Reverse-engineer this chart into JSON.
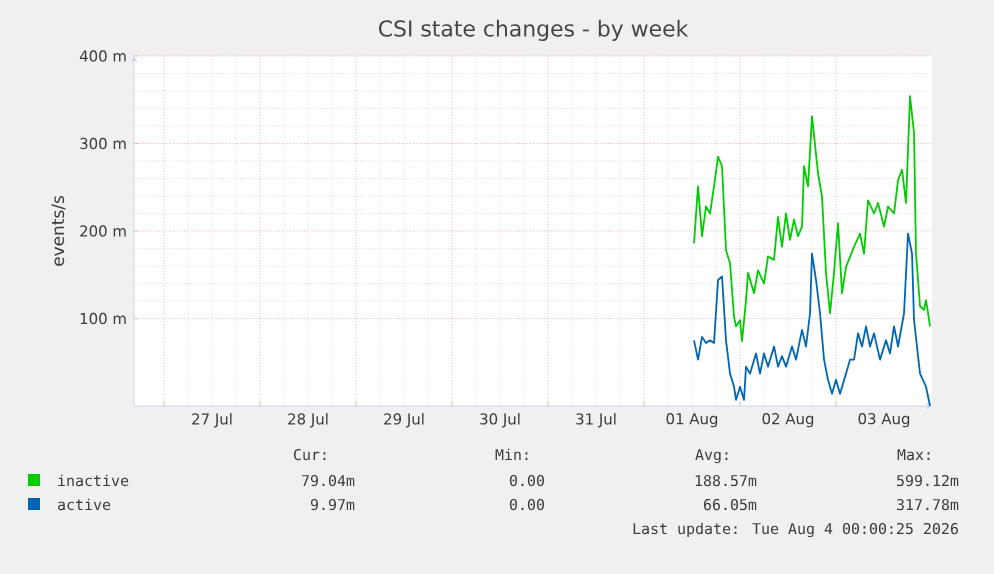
{
  "chart_data": {
    "type": "line",
    "title": "CSI state changes - by week",
    "ylabel": "events/s",
    "xlim": [
      "2026-07-26T16:30",
      "2026-08-04T00:00"
    ],
    "ylim": [
      0,
      400
    ],
    "yticks": [
      {
        "value": 100,
        "label": "100 m"
      },
      {
        "value": 200,
        "label": "200 m"
      },
      {
        "value": 300,
        "label": "300 m"
      },
      {
        "value": 400,
        "label": "400 m"
      }
    ],
    "xticks": [
      {
        "value": "2026-07-27T00:00",
        "label": null
      },
      {
        "value": "2026-07-28T00:00",
        "label": null
      },
      {
        "value": "2026-07-29T00:00",
        "label": null
      },
      {
        "value": "2026-07-30T00:00",
        "label": null
      },
      {
        "value": "2026-07-31T00:00",
        "label": null
      },
      {
        "value": "2026-08-01T00:00",
        "label": null
      },
      {
        "value": "2026-08-02T00:00",
        "label": null
      },
      {
        "value": "2026-08-03T00:00",
        "label": null
      },
      {
        "value": "2026-07-27T12:00",
        "label": "27 Jul"
      },
      {
        "value": "2026-07-28T12:00",
        "label": "28 Jul"
      },
      {
        "value": "2026-07-29T12:00",
        "label": "29 Jul"
      },
      {
        "value": "2026-07-30T12:00",
        "label": "30 Jul"
      },
      {
        "value": "2026-07-31T12:00",
        "label": "31 Jul"
      },
      {
        "value": "2026-08-01T12:00",
        "label": "01 Aug"
      },
      {
        "value": "2026-08-02T12:00",
        "label": "02 Aug"
      },
      {
        "value": "2026-08-03T12:00",
        "label": "03 Aug"
      }
    ],
    "grid": true,
    "legend": "bottom",
    "series": [
      {
        "name": "inactive",
        "color": "#00cc00",
        "x": [
          "2026-08-01T12:30",
          "2026-08-01T13:30",
          "2026-08-01T14:30",
          "2026-08-01T15:30",
          "2026-08-01T16:30",
          "2026-08-01T17:30",
          "2026-08-01T18:30",
          "2026-08-01T19:30",
          "2026-08-01T20:30",
          "2026-08-01T21:30",
          "2026-08-01T22:30",
          "2026-08-01T23:00",
          "2026-08-02T00:00",
          "2026-08-02T00:30",
          "2026-08-02T01:30",
          "2026-08-02T02:00",
          "2026-08-02T03:30",
          "2026-08-02T04:30",
          "2026-08-02T06:00",
          "2026-08-02T07:00",
          "2026-08-02T08:30",
          "2026-08-02T09:30",
          "2026-08-02T10:30",
          "2026-08-02T11:30",
          "2026-08-02T12:30",
          "2026-08-02T13:30",
          "2026-08-02T14:30",
          "2026-08-02T15:30",
          "2026-08-02T16:00",
          "2026-08-02T17:00",
          "2026-08-02T18:00",
          "2026-08-02T19:30",
          "2026-08-02T20:30",
          "2026-08-02T21:30",
          "2026-08-02T22:30",
          "2026-08-02T23:30",
          "2026-08-03T00:30",
          "2026-08-03T01:30",
          "2026-08-03T02:30",
          "2026-08-03T04:30",
          "2026-08-03T06:00",
          "2026-08-03T07:00",
          "2026-08-03T08:00",
          "2026-08-03T09:30",
          "2026-08-03T10:30",
          "2026-08-03T12:00",
          "2026-08-03T13:00",
          "2026-08-03T14:30",
          "2026-08-03T15:30",
          "2026-08-03T16:30",
          "2026-08-03T17:30",
          "2026-08-03T18:30",
          "2026-08-03T19:30",
          "2026-08-03T20:00",
          "2026-08-03T21:00",
          "2026-08-03T22:00",
          "2026-08-03T22:30",
          "2026-08-03T23:30"
        ],
        "values": [
          186,
          251,
          194,
          228,
          220,
          251,
          285,
          274,
          178,
          163,
          102,
          91,
          98,
          74,
          121,
          152,
          129,
          155,
          140,
          171,
          167,
          216,
          182,
          220,
          190,
          213,
          194,
          205,
          274,
          251,
          331,
          266,
          239,
          152,
          106,
          152,
          209,
          129,
          159,
          182,
          197,
          174,
          235,
          220,
          232,
          205,
          228,
          220,
          258,
          270,
          232,
          354,
          312,
          174,
          114,
          110,
          121,
          91
        ]
      },
      {
        "name": "active",
        "color": "#0066b3",
        "x": [
          "2026-08-01T12:30",
          "2026-08-01T13:30",
          "2026-08-01T14:30",
          "2026-08-01T15:30",
          "2026-08-01T16:30",
          "2026-08-01T17:30",
          "2026-08-01T18:30",
          "2026-08-01T19:30",
          "2026-08-01T20:30",
          "2026-08-01T21:30",
          "2026-08-01T22:30",
          "2026-08-01T23:00",
          "2026-08-02T00:00",
          "2026-08-02T01:00",
          "2026-08-02T01:30",
          "2026-08-02T02:30",
          "2026-08-02T04:00",
          "2026-08-02T05:00",
          "2026-08-02T06:00",
          "2026-08-02T07:00",
          "2026-08-02T08:30",
          "2026-08-02T09:30",
          "2026-08-02T10:30",
          "2026-08-02T11:30",
          "2026-08-02T13:00",
          "2026-08-02T14:00",
          "2026-08-02T15:30",
          "2026-08-02T16:30",
          "2026-08-02T17:30",
          "2026-08-02T18:00",
          "2026-08-02T19:00",
          "2026-08-02T20:00",
          "2026-08-02T21:00",
          "2026-08-02T22:00",
          "2026-08-02T23:00",
          "2026-08-03T00:00",
          "2026-08-03T01:00",
          "2026-08-03T02:30",
          "2026-08-03T03:30",
          "2026-08-03T04:30",
          "2026-08-03T05:30",
          "2026-08-03T06:30",
          "2026-08-03T07:30",
          "2026-08-03T08:30",
          "2026-08-03T09:30",
          "2026-08-03T11:00",
          "2026-08-03T12:30",
          "2026-08-03T13:30",
          "2026-08-03T14:30",
          "2026-08-03T15:30",
          "2026-08-03T17:00",
          "2026-08-03T18:00",
          "2026-08-03T19:00",
          "2026-08-03T19:30",
          "2026-08-03T21:00",
          "2026-08-03T22:30",
          "2026-08-03T23:30"
        ],
        "values": [
          75,
          53,
          79,
          72,
          75,
          72,
          144,
          148,
          75,
          37,
          22,
          7,
          22,
          7,
          45,
          37,
          60,
          37,
          60,
          45,
          68,
          45,
          57,
          45,
          68,
          53,
          87,
          68,
          106,
          174,
          144,
          106,
          53,
          30,
          14,
          30,
          14,
          37,
          53,
          53,
          83,
          68,
          91,
          68,
          83,
          53,
          75,
          60,
          91,
          68,
          106,
          197,
          174,
          98,
          37,
          22,
          0
        ]
      }
    ],
    "annotations": [
      "Cur:",
      "Min:",
      "Avg:",
      "Max:",
      "79.04m",
      "0.00",
      "188.57m",
      "599.12m",
      "9.97m",
      "0.00",
      "66.05m",
      "317.78m",
      "Last update: Tue Aug  4 00:00:25 2026"
    ]
  }
}
